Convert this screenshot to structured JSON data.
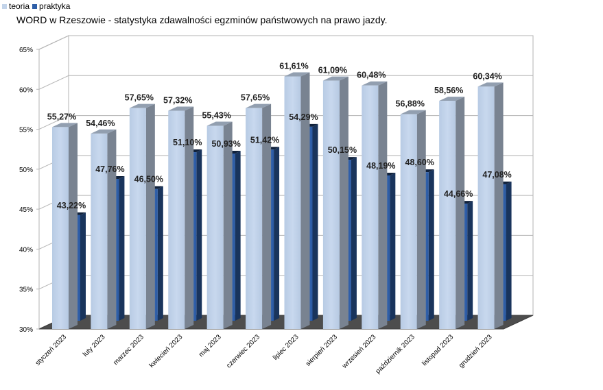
{
  "chart_data": {
    "type": "bar",
    "title": "WORD w Rzeszowie - statystyka zdawalności egzminów państwowych na prawo jazdy.",
    "categories": [
      "styczeń 2023",
      "luty 2023",
      "marzec 2023",
      "kwiecień 2023",
      "maj 2023",
      "czerwiec 2023",
      "lipiec 2023",
      "sierpień 2023",
      "wrzesień 2023",
      "październik 2023",
      "listopad 2023",
      "grudzień 2023"
    ],
    "series": [
      {
        "name": "teoria",
        "values": [
          55.27,
          54.46,
          57.65,
          57.32,
          55.43,
          57.65,
          61.61,
          61.09,
          60.48,
          56.88,
          58.56,
          60.34
        ],
        "labels": [
          "55,27%",
          "54,46%",
          "57,65%",
          "57,32%",
          "55,43%",
          "57,65%",
          "61,61%",
          "61,09%",
          "60,48%",
          "56,88%",
          "58,56%",
          "60,34%"
        ],
        "color": "#c3d4ea"
      },
      {
        "name": "praktyka",
        "values": [
          43.22,
          47.76,
          46.5,
          51.1,
          50.93,
          51.42,
          54.29,
          50.15,
          48.19,
          48.6,
          44.66,
          47.08
        ],
        "labels": [
          "43,22%",
          "47,76%",
          "46,50%",
          "51,10%",
          "50,93%",
          "51,42%",
          "54,29%",
          "50,15%",
          "48,19%",
          "48,60%",
          "44,66%",
          "47,08%"
        ],
        "color": "#2e5fa8"
      }
    ],
    "ylim": [
      30,
      65
    ],
    "yticks": [
      30,
      35,
      40,
      45,
      50,
      55,
      60,
      65
    ],
    "ytick_labels": [
      "30%",
      "35%",
      "40%",
      "45%",
      "50%",
      "55%",
      "60%",
      "65%"
    ],
    "grid": true,
    "legend": "top-left"
  }
}
